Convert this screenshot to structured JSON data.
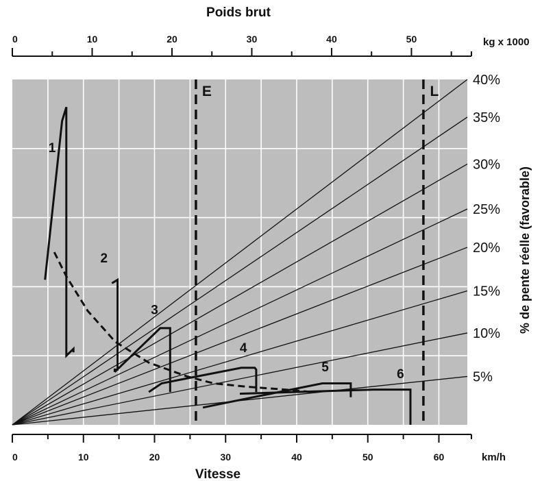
{
  "chart_data": {
    "type": "line",
    "top_axis": {
      "title": "Poids brut",
      "unit": "kg x 1000",
      "range": [
        0,
        57
      ],
      "ticks": [
        0,
        10,
        20,
        30,
        40,
        50
      ],
      "minor_step": 5
    },
    "bottom_axis": {
      "title": "Vitesse",
      "unit": "km/h",
      "range": [
        0,
        64
      ],
      "ticks": [
        0,
        10,
        20,
        30,
        40,
        50,
        60
      ],
      "minor_step": 5
    },
    "right_axis_title": "% de pente réelle (favorable)",
    "grade_lines": [
      {
        "label": "40%",
        "level": 100
      },
      {
        "label": "35%",
        "level": 89.1
      },
      {
        "label": "30%",
        "level": 75.5
      },
      {
        "label": "25%",
        "level": 62.5
      },
      {
        "label": "20%",
        "level": 51.4
      },
      {
        "label": "15%",
        "level": 38.8
      },
      {
        "label": "10%",
        "level": 26.6
      },
      {
        "label": "5%",
        "level": 14.0
      }
    ],
    "vertical_markers": [
      {
        "label": "E",
        "weight": 23
      },
      {
        "label": "L",
        "weight": 51.5
      }
    ],
    "gears": [
      {
        "label": "1",
        "label_at": [
          5.6,
          79
        ],
        "points": [
          [
            4.6,
            42
          ],
          [
            7.0,
            88
          ],
          [
            7.6,
            92
          ],
          [
            7.6,
            20
          ],
          [
            8.6,
            22
          ],
          [
            8.6,
            21
          ]
        ]
      },
      {
        "label": "2",
        "label_at": [
          12.9,
          47
        ],
        "points": [
          [
            14.0,
            41
          ],
          [
            14.8,
            42
          ],
          [
            14.8,
            16
          ],
          [
            14.4,
            16
          ],
          [
            14.4,
            15.3
          ]
        ]
      },
      {
        "label": "3",
        "label_at": [
          20.0,
          32
        ],
        "points": [
          [
            14.4,
            15.3
          ],
          [
            20.8,
            28
          ],
          [
            22.2,
            28
          ],
          [
            22.2,
            9.5
          ]
        ]
      },
      {
        "label": "4",
        "label_at": [
          32.5,
          21
        ],
        "points": [
          [
            19.2,
            9.5
          ],
          [
            21.0,
            12
          ],
          [
            32.2,
            16.5
          ],
          [
            34.1,
            16.5
          ],
          [
            34.3,
            16
          ],
          [
            34.3,
            9.5
          ]
        ]
      },
      {
        "label": "5",
        "label_at": [
          44.0,
          15.5
        ],
        "points": [
          [
            26.8,
            5
          ],
          [
            33.9,
            8
          ],
          [
            43.6,
            12
          ],
          [
            47.6,
            12
          ],
          [
            47.6,
            8
          ]
        ]
      },
      {
        "label": "6",
        "label_at": [
          54.6,
          13.5
        ],
        "points": [
          [
            32.0,
            9
          ],
          [
            50.9,
            10.2
          ],
          [
            56.0,
            10.2
          ],
          [
            56.0,
            0
          ]
        ]
      }
    ],
    "dashed_envelope": [
      [
        5.9,
        50
      ],
      [
        7.6,
        43
      ],
      [
        10.6,
        33
      ],
      [
        14.5,
        24
      ],
      [
        19.2,
        18
      ],
      [
        24.6,
        14
      ],
      [
        28.3,
        12
      ],
      [
        33.2,
        11
      ],
      [
        39.7,
        10
      ],
      [
        42.0,
        9.5
      ],
      [
        41.6,
        10.0
      ]
    ],
    "grid": true,
    "background": "#bdbdbd",
    "line_color": "#111111",
    "grid_color": "#ffffff"
  }
}
